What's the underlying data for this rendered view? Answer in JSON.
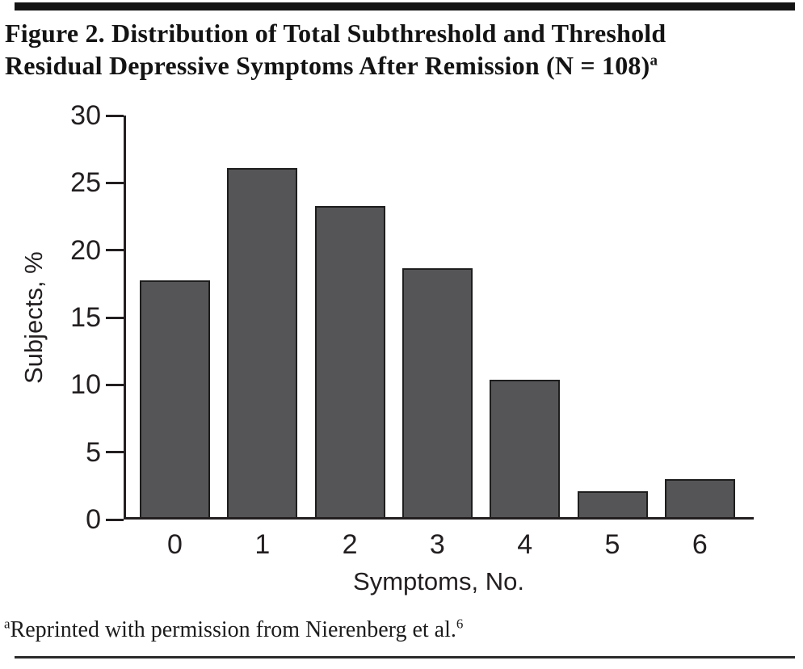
{
  "figure": {
    "title_line1": "Figure 2. Distribution of Total Subthreshold and Threshold",
    "title_line2": "Residual Depressive Symptoms After Remission (N = 108)",
    "footnote_marker": "a"
  },
  "footnote": {
    "marker": "a",
    "text": "Reprinted with permission from Nierenberg et al.",
    "reference": "6"
  },
  "chart_data": {
    "type": "bar",
    "title": "Figure 2. Distribution of Total Subthreshold and Threshold Residual Depressive Symptoms After Remission (N = 108)",
    "categories": [
      "0",
      "1",
      "2",
      "3",
      "4",
      "5",
      "6"
    ],
    "values": [
      17.6,
      25.9,
      23.1,
      18.5,
      10.2,
      1.9,
      2.8
    ],
    "xlabel": "Symptoms, No.",
    "ylabel": "Subjects, %",
    "ylim": [
      0,
      30
    ],
    "yticks": [
      0,
      5,
      10,
      15,
      20,
      25,
      30
    ],
    "grid": false,
    "legend": false,
    "bar_fill_color": "#555456",
    "bar_border_color": "#1f1e1e",
    "axis_color": "#231f20"
  }
}
